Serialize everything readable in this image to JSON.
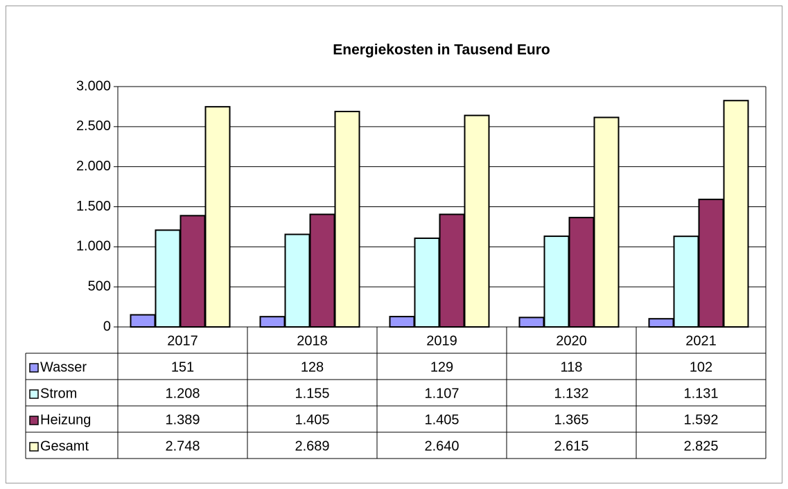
{
  "chart_data": {
    "type": "bar",
    "title": "Energiekosten in Tausend Euro",
    "categories": [
      "2017",
      "2018",
      "2019",
      "2020",
      "2021"
    ],
    "series": [
      {
        "name": "Wasser",
        "color": "#9999ff",
        "values": [
          151,
          128,
          129,
          118,
          102
        ],
        "value_labels": [
          "151",
          "128",
          "129",
          "118",
          "102"
        ]
      },
      {
        "name": "Strom",
        "color": "#ccffff",
        "values": [
          1208,
          1155,
          1107,
          1132,
          1131
        ],
        "value_labels": [
          "1.208",
          "1.155",
          "1.107",
          "1.132",
          "1.131"
        ]
      },
      {
        "name": "Heizung",
        "color": "#993366",
        "values": [
          1389,
          1405,
          1405,
          1365,
          1592
        ],
        "value_labels": [
          "1.389",
          "1.405",
          "1.405",
          "1.365",
          "1.592"
        ]
      },
      {
        "name": "Gesamt",
        "color": "#ffffcc",
        "values": [
          2748,
          2689,
          2640,
          2615,
          2825
        ],
        "value_labels": [
          "2.748",
          "2.689",
          "2.640",
          "2.615",
          "2.825"
        ]
      }
    ],
    "ylim": [
      0,
      3000
    ],
    "yticks": [
      0,
      500,
      {
        "value": 1000,
        "label": "1.000"
      },
      {
        "value": 1500,
        "label": "1.500"
      },
      {
        "value": 2000,
        "label": "2.000"
      },
      {
        "value": 2500,
        "label": "2.500"
      },
      {
        "value": 3000,
        "label": "3.000"
      }
    ],
    "grid": true
  }
}
